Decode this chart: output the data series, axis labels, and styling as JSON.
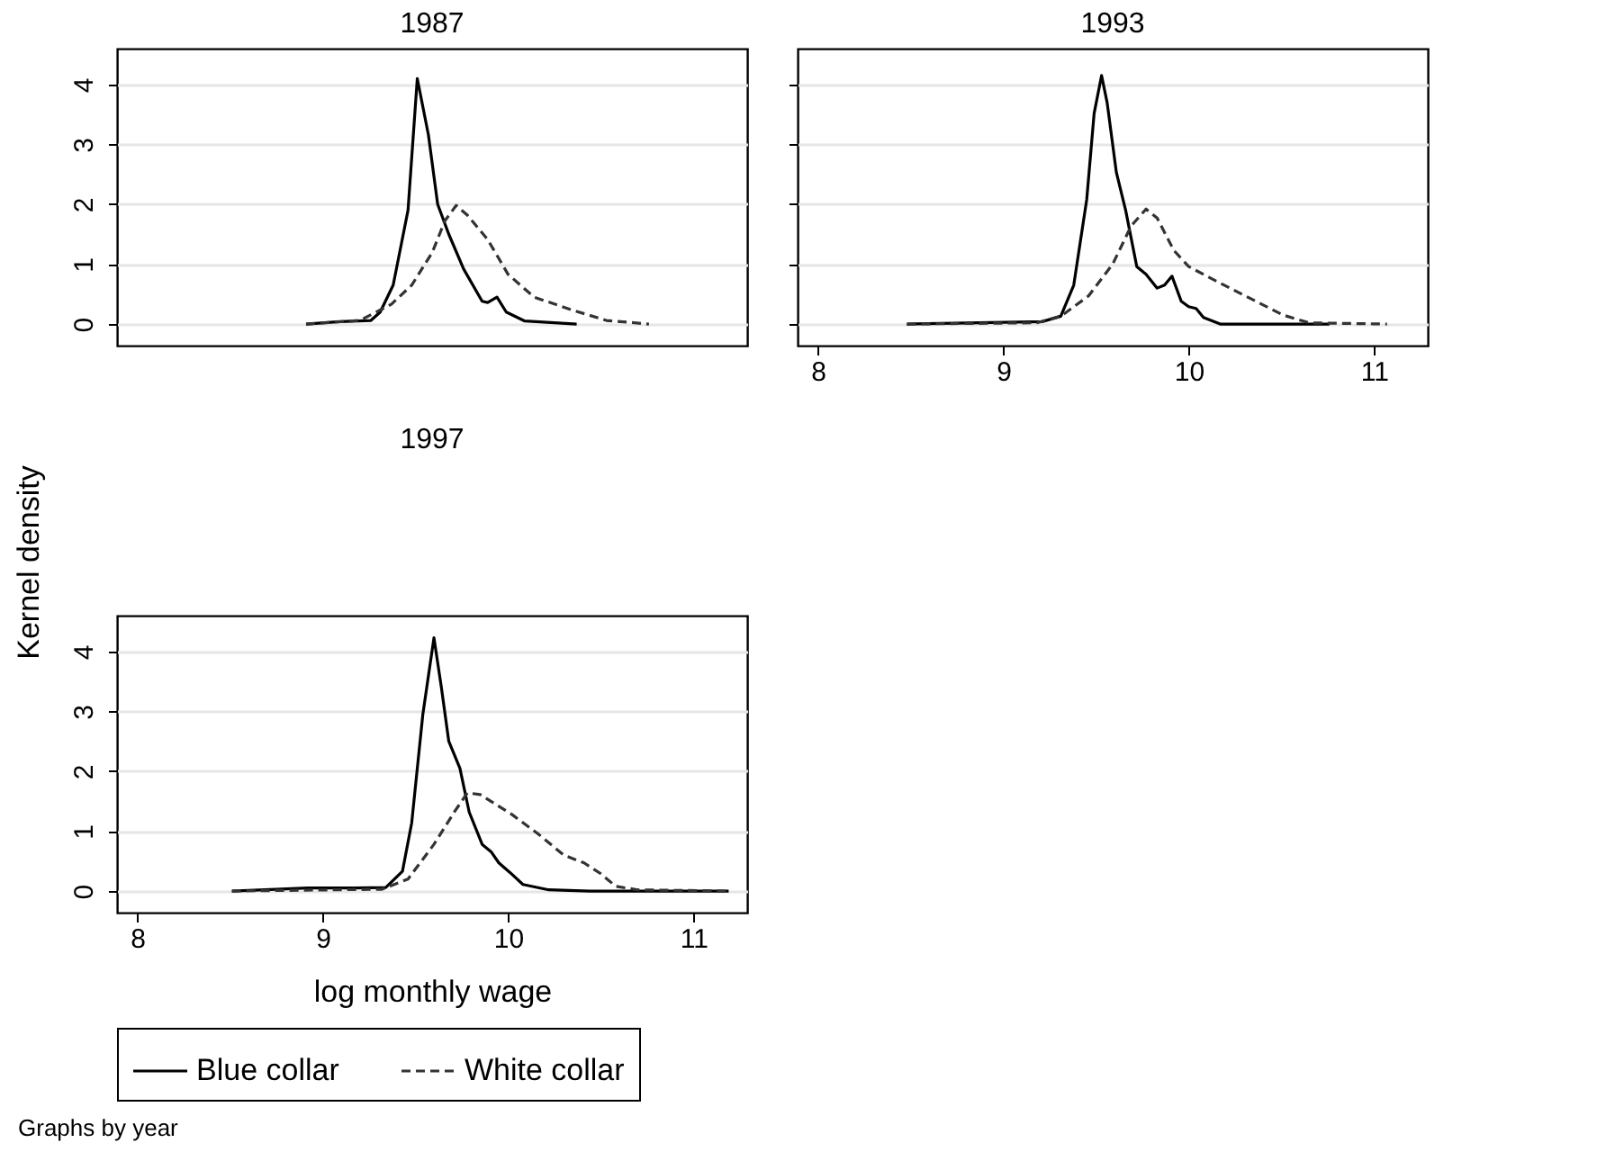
{
  "chart_data": [
    {
      "type": "line",
      "title": "1987",
      "xlim": [
        7.89,
        11.29
      ],
      "ylim": [
        -0.36,
        4.6
      ],
      "yticks": [
        0,
        1,
        2,
        3,
        4
      ],
      "tick_labels": "y",
      "grid": "y",
      "series": [
        {
          "color": "#000000",
          "line_style": "solid",
          "x": [
            8.91,
            9.09,
            9.26,
            9.31,
            9.38,
            9.46,
            9.51,
            9.57,
            9.62,
            9.68,
            9.76,
            9.86,
            9.89,
            9.94,
            9.99,
            10.09,
            10.37
          ],
          "values": [
            0,
            0.04,
            0.06,
            0.2,
            0.65,
            1.9,
            4.1,
            3.16,
            2.0,
            1.5,
            0.92,
            0.38,
            0.36,
            0.45,
            0.2,
            0.05,
            0
          ]
        },
        {
          "color": "#333333",
          "line_style": "dashed",
          "x": [
            8.91,
            9.2,
            9.37,
            9.48,
            9.59,
            9.66,
            9.72,
            9.78,
            9.89,
            10.0,
            10.14,
            10.34,
            10.53,
            10.76
          ],
          "values": [
            0,
            0.06,
            0.33,
            0.65,
            1.19,
            1.73,
            1.98,
            1.82,
            1.41,
            0.83,
            0.45,
            0.24,
            0.06,
            0
          ]
        }
      ]
    },
    {
      "type": "line",
      "title": "1993",
      "xlim": [
        7.89,
        11.29
      ],
      "xticks": [
        8,
        9,
        10,
        11
      ],
      "ylim": [
        -0.36,
        4.6
      ],
      "yticks": [
        0,
        1,
        2,
        3,
        4
      ],
      "tick_labels": "x",
      "grid": "y",
      "series": [
        {
          "color": "#000000",
          "line_style": "solid",
          "x": [
            8.48,
            9.21,
            9.31,
            9.38,
            9.45,
            9.49,
            9.53,
            9.56,
            9.61,
            9.66,
            9.72,
            9.77,
            9.83,
            9.87,
            9.91,
            9.96,
            10.0,
            10.04,
            10.08,
            10.17,
            10.76
          ],
          "values": [
            0,
            0.04,
            0.13,
            0.65,
            2.08,
            3.52,
            4.15,
            3.7,
            2.53,
            1.9,
            0.96,
            0.83,
            0.6,
            0.65,
            0.8,
            0.38,
            0.29,
            0.26,
            0.11,
            0,
            0
          ]
        },
        {
          "color": "#333333",
          "line_style": "dashed",
          "x": [
            8.48,
            9.18,
            9.31,
            9.46,
            9.59,
            9.69,
            9.77,
            9.83,
            9.92,
            10.0,
            10.11,
            10.28,
            10.51,
            10.65,
            11.07
          ],
          "values": [
            0,
            0.02,
            0.13,
            0.47,
            1.0,
            1.64,
            1.92,
            1.77,
            1.23,
            0.96,
            0.78,
            0.51,
            0.15,
            0.02,
            0
          ]
        }
      ]
    },
    {
      "type": "line",
      "title": "1997",
      "xlabel": "log monthly wage",
      "ylabel": "Kernel density",
      "legend": "bottom",
      "annotations": [
        "Graphs by year"
      ],
      "xlim": [
        7.89,
        11.29
      ],
      "xticks": [
        8,
        9,
        10,
        11
      ],
      "ylim": [
        -0.36,
        4.6
      ],
      "yticks": [
        0,
        1,
        2,
        3,
        4
      ],
      "grid": "y",
      "series": [
        {
          "name": "Blue collar",
          "color": "#000000",
          "line_style": "solid",
          "x": [
            8.51,
            8.92,
            9.17,
            9.34,
            9.43,
            9.48,
            9.54,
            9.6,
            9.64,
            9.68,
            9.74,
            9.79,
            9.86,
            9.91,
            9.95,
            10.01,
            10.08,
            10.22,
            10.44,
            11.19
          ],
          "values": [
            0,
            0.05,
            0.05,
            0.06,
            0.33,
            1.14,
            2.95,
            4.23,
            3.4,
            2.5,
            2.05,
            1.32,
            0.78,
            0.65,
            0.47,
            0.31,
            0.11,
            0.02,
            0,
            0
          ]
        },
        {
          "name": "White collar",
          "color": "#333333",
          "line_style": "dashed",
          "x": [
            8.51,
            9.32,
            9.46,
            9.6,
            9.71,
            9.78,
            9.85,
            10.02,
            10.16,
            10.3,
            10.41,
            10.5,
            10.58,
            10.7,
            11.19
          ],
          "values": [
            0,
            0.03,
            0.2,
            0.78,
            1.32,
            1.64,
            1.61,
            1.28,
            0.96,
            0.6,
            0.47,
            0.29,
            0.08,
            0.02,
            0
          ]
        }
      ]
    }
  ]
}
